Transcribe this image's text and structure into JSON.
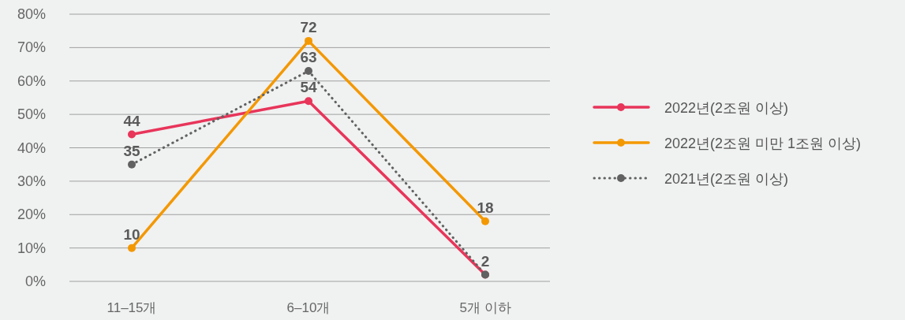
{
  "chart_data": {
    "type": "line",
    "categories": [
      "11–15개",
      "6–10개",
      "5개 이하"
    ],
    "series": [
      {
        "name": "2022년(2조원 이상)",
        "color": "#e8355a",
        "values": [
          44,
          54,
          2
        ],
        "value_labels": [
          "44",
          "54",
          null
        ],
        "line_style": "solid"
      },
      {
        "name": "2022년(2조원 미만 1조원 이상)",
        "color": "#f39800",
        "values": [
          10,
          72,
          18
        ],
        "value_labels": [
          "10",
          "72",
          "18"
        ],
        "line_style": "solid"
      },
      {
        "name": "2021년(2조원 이상)",
        "color": "#616161",
        "values": [
          35,
          63,
          2
        ],
        "value_labels": [
          "35",
          "63",
          "2"
        ],
        "line_style": "dotted"
      }
    ],
    "ylim": [
      0,
      80
    ],
    "yticks": [
      {
        "value": 0,
        "label": "0%"
      },
      {
        "value": 10,
        "label": "10%"
      },
      {
        "value": 20,
        "label": "20%"
      },
      {
        "value": 30,
        "label": "30%"
      },
      {
        "value": 40,
        "label": "40%"
      },
      {
        "value": 50,
        "label": "50%"
      },
      {
        "value": 60,
        "label": "60%"
      },
      {
        "value": 70,
        "label": "70%"
      },
      {
        "value": 80,
        "label": "80%"
      }
    ],
    "grid": "y",
    "legend": "right",
    "marker": "circle"
  }
}
